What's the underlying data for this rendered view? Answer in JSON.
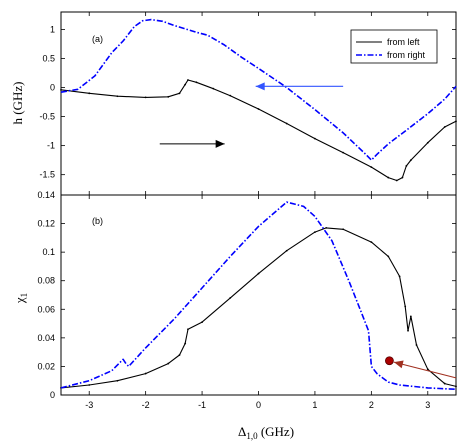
{
  "chart_data": [
    {
      "type": "line",
      "panel_label": "(a)",
      "ylabel": "h (GHz)",
      "xlim": [
        -3.5,
        3.5
      ],
      "ylim": [
        -1.85,
        1.3
      ],
      "xticks": [
        -3,
        -2,
        -1,
        0,
        1,
        2,
        3
      ],
      "yticks": [
        -1.5,
        -1,
        -0.5,
        0,
        0.5,
        1
      ],
      "ytick_labels": [
        "-1.5",
        "-1",
        "-0.5",
        "0",
        "0.5",
        "1"
      ],
      "grid": false,
      "legend": {
        "placement": "top-right",
        "entries": [
          "from left",
          "from right"
        ]
      },
      "series": [
        {
          "name": "from left",
          "color": "#000000",
          "style": "solid-dots",
          "x": [
            -3.5,
            -3.0,
            -2.5,
            -2.0,
            -1.6,
            -1.4,
            -1.3,
            -1.25,
            -1.1,
            -0.8,
            -0.5,
            0.0,
            0.5,
            1.0,
            1.5,
            2.0,
            2.3,
            2.45,
            2.55,
            2.62,
            2.7,
            3.0,
            3.3,
            3.5
          ],
          "y": [
            -0.04,
            -0.1,
            -0.15,
            -0.17,
            -0.16,
            -0.1,
            0.05,
            0.13,
            0.09,
            -0.02,
            -0.14,
            -0.37,
            -0.62,
            -0.88,
            -1.12,
            -1.37,
            -1.55,
            -1.6,
            -1.55,
            -1.35,
            -1.25,
            -0.95,
            -0.68,
            -0.58
          ]
        },
        {
          "name": "from right",
          "color": "#0000ff",
          "style": "dash-dot",
          "x": [
            -3.5,
            -3.2,
            -2.9,
            -2.6,
            -2.4,
            -2.2,
            -2.05,
            -1.9,
            -1.7,
            -1.5,
            -1.3,
            -1.1,
            -0.9,
            -0.6,
            -0.3,
            0.0,
            0.5,
            1.0,
            1.5,
            1.9,
            2.0,
            2.1,
            2.3,
            2.6,
            3.0,
            3.3,
            3.5
          ],
          "y": [
            -0.08,
            -0.03,
            0.2,
            0.6,
            0.8,
            1.05,
            1.15,
            1.17,
            1.14,
            1.07,
            1.01,
            0.95,
            0.9,
            0.73,
            0.52,
            0.33,
            0.0,
            -0.38,
            -0.78,
            -1.15,
            -1.25,
            -1.15,
            -0.97,
            -0.75,
            -0.45,
            -0.2,
            0.02
          ]
        }
      ],
      "arrows": [
        {
          "direction": "right",
          "color": "#000000",
          "x_from": -1.75,
          "x_to": -0.6,
          "y": -0.97
        },
        {
          "direction": "left",
          "color": "#3355ff",
          "x_from": 1.5,
          "x_to": -0.05,
          "y": 0.02
        }
      ]
    },
    {
      "type": "line",
      "panel_label": "(b)",
      "ylabel": "χ_1",
      "ylabel_main": "χ",
      "ylabel_sub": "1",
      "xlabel": "Δ_{1,0} (GHz)",
      "xlabel_main": "Δ",
      "xlabel_sub": "1,0",
      "xlabel_unit": " (GHz)",
      "xlim": [
        -3.5,
        3.5
      ],
      "ylim": [
        0.0,
        0.14
      ],
      "xticks": [
        -3,
        -2,
        -1,
        0,
        1,
        2,
        3
      ],
      "yticks": [
        0,
        0.02,
        0.04,
        0.06,
        0.08,
        0.1,
        0.12,
        0.14
      ],
      "ytick_labels": [
        "0",
        "0.02",
        "0.04",
        "0.06",
        "0.08",
        "0.1",
        "0.12",
        "0.14"
      ],
      "grid": false,
      "series": [
        {
          "name": "from left",
          "color": "#000000",
          "style": "solid-dots",
          "x": [
            -3.5,
            -3.0,
            -2.5,
            -2.0,
            -1.6,
            -1.4,
            -1.3,
            -1.25,
            -1.0,
            -0.5,
            0.0,
            0.5,
            1.0,
            1.2,
            1.5,
            2.0,
            2.3,
            2.5,
            2.6,
            2.65,
            2.7,
            2.8,
            3.0,
            3.3,
            3.5
          ],
          "y": [
            0.005,
            0.007,
            0.01,
            0.015,
            0.022,
            0.028,
            0.036,
            0.046,
            0.051,
            0.068,
            0.085,
            0.101,
            0.114,
            0.117,
            0.116,
            0.107,
            0.097,
            0.083,
            0.062,
            0.045,
            0.055,
            0.035,
            0.018,
            0.008,
            0.006
          ]
        },
        {
          "name": "from right",
          "color": "#0000ff",
          "style": "dash-dot",
          "x": [
            -3.5,
            -3.0,
            -2.6,
            -2.4,
            -2.35,
            -2.3,
            -2.0,
            -1.5,
            -1.0,
            -0.5,
            0.0,
            0.5,
            0.8,
            1.0,
            1.3,
            1.6,
            1.8,
            1.95,
            2.0,
            2.1,
            2.2,
            2.3,
            2.5,
            3.0,
            3.5
          ],
          "y": [
            0.005,
            0.01,
            0.017,
            0.025,
            0.022,
            0.02,
            0.033,
            0.053,
            0.075,
            0.097,
            0.118,
            0.135,
            0.132,
            0.125,
            0.108,
            0.08,
            0.06,
            0.045,
            0.02,
            0.015,
            0.012,
            0.009,
            0.007,
            0.005,
            0.004
          ]
        }
      ],
      "marker": {
        "x": 2.32,
        "y": 0.024,
        "color": "#aa0000"
      },
      "arrows": [
        {
          "direction": "left",
          "color": "#a03020",
          "x_from": 3.5,
          "x_to": 2.4,
          "y_from": 0.012,
          "y_to": 0.023
        }
      ]
    }
  ]
}
